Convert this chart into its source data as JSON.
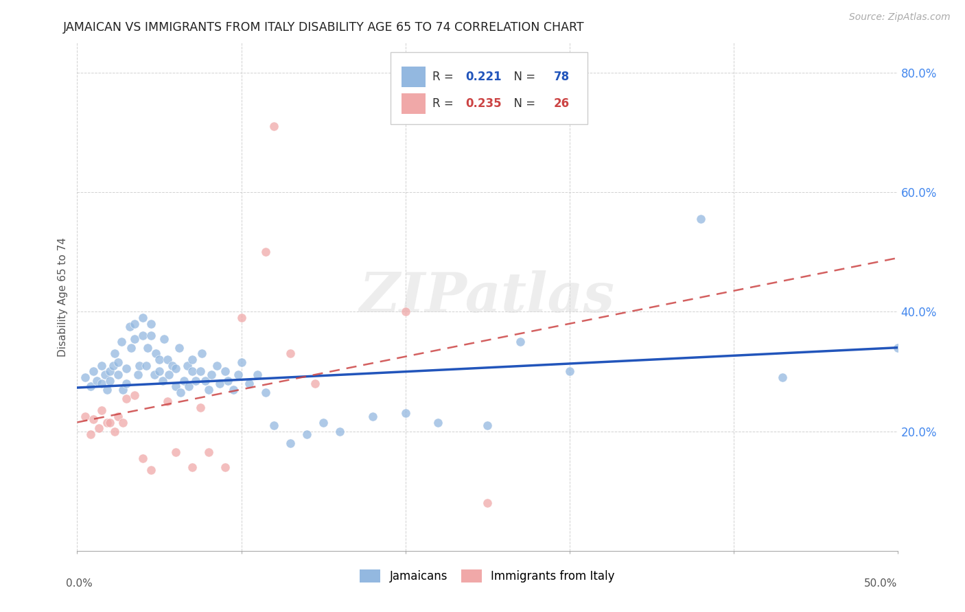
{
  "title": "JAMAICAN VS IMMIGRANTS FROM ITALY DISABILITY AGE 65 TO 74 CORRELATION CHART",
  "source": "Source: ZipAtlas.com",
  "ylabel": "Disability Age 65 to 74",
  "xlim": [
    0.0,
    0.5
  ],
  "ylim": [
    0.0,
    0.85
  ],
  "xtick_vals": [
    0.0,
    0.1,
    0.2,
    0.3,
    0.4,
    0.5
  ],
  "ytick_vals": [
    0.0,
    0.2,
    0.4,
    0.6,
    0.8
  ],
  "right_yticklabels": [
    "",
    "20.0%",
    "40.0%",
    "60.0%",
    "80.0%"
  ],
  "watermark": "ZIPatlas",
  "blue_scatter_color": "#93b8e0",
  "pink_scatter_color": "#f0a8a8",
  "blue_line_color": "#2255bb",
  "pink_line_color": "#cc4444",
  "background_color": "#ffffff",
  "grid_color": "#cccccc",
  "blue_r": "0.221",
  "blue_n": "78",
  "pink_r": "0.235",
  "pink_n": "26",
  "blue_label": "Jamaicans",
  "pink_label": "Immigrants from Italy",
  "blue_line_x0": 0.0,
  "blue_line_y0": 0.273,
  "blue_line_x1": 0.5,
  "blue_line_y1": 0.34,
  "pink_line_x0": 0.0,
  "pink_line_y0": 0.215,
  "pink_line_x1": 0.5,
  "pink_line_y1": 0.49
}
